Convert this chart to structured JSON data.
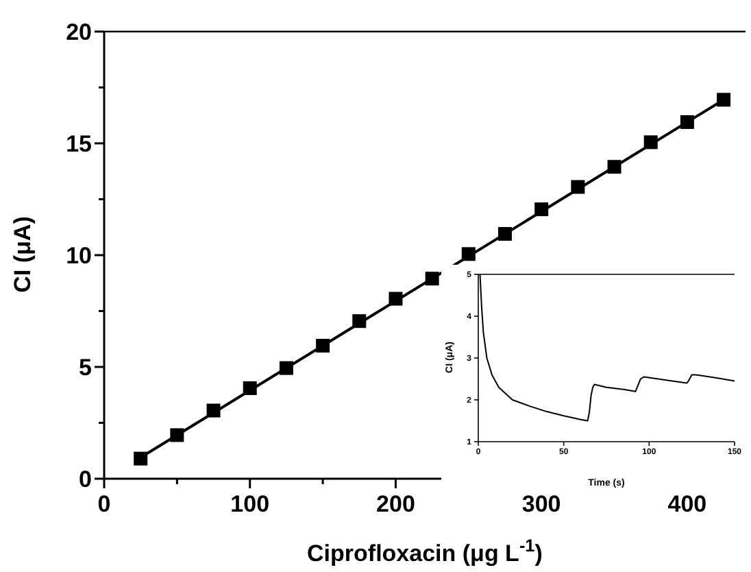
{
  "chart_data": [
    {
      "type": "scatter",
      "xlabel": "Ciprofloxacin (μg L$^{-1}$)",
      "ylabel": "CI (μA)",
      "xlim": [
        0,
        440
      ],
      "xticks": [
        0,
        {
          "value": 50,
          "label": null
        },
        100,
        {
          "value": 150,
          "label": null
        },
        200,
        {
          "value": 250,
          "label": null
        },
        300,
        {
          "value": 350,
          "label": null
        },
        400
      ],
      "ylim": [
        0,
        20
      ],
      "yticks": [
        0,
        {
          "value": 2.5,
          "label": null
        },
        5,
        {
          "value": 7.5,
          "label": null
        },
        10,
        {
          "value": 12.5,
          "label": null
        },
        15,
        {
          "value": 17.5,
          "label": null
        },
        20
      ],
      "series": [
        {
          "marker": "square",
          "color": "#000000",
          "x": [
            25,
            50,
            75,
            100,
            125,
            150,
            175,
            200,
            225,
            250,
            275,
            300,
            325,
            350,
            375,
            400,
            425
          ],
          "values": [
            0.9,
            1.95,
            3.05,
            4.05,
            4.95,
            5.95,
            7.05,
            8.05,
            8.95,
            10.05,
            10.95,
            12.05,
            13.05,
            13.95,
            15.05,
            15.95,
            16.95
          ]
        },
        {
          "type": "line",
          "marker": "none",
          "color": "#000000",
          "x": [
            25,
            425
          ],
          "values": [
            0.95,
            16.95
          ]
        }
      ]
    },
    {
      "type": "line",
      "xlabel": "Time (s)",
      "ylabel": "CI (μA)",
      "xlim": [
        0,
        150
      ],
      "xticks": [
        0,
        50,
        100,
        150
      ],
      "ylim": [
        1,
        5
      ],
      "yticks": [
        1,
        2,
        3,
        4,
        5
      ],
      "marker": "none",
      "series": [
        {
          "color": "#000000",
          "x": [
            1,
            2,
            3,
            5,
            8,
            12,
            20,
            30,
            40,
            50,
            60,
            64,
            65,
            66,
            67,
            68,
            75,
            85,
            92,
            93,
            95,
            97,
            110,
            122,
            123,
            125,
            127,
            140,
            150
          ],
          "values": [
            5,
            4.2,
            3.6,
            3.0,
            2.6,
            2.3,
            2.0,
            1.85,
            1.72,
            1.62,
            1.53,
            1.5,
            1.7,
            2.1,
            2.3,
            2.37,
            2.3,
            2.25,
            2.2,
            2.3,
            2.5,
            2.55,
            2.47,
            2.4,
            2.45,
            2.6,
            2.6,
            2.52,
            2.45
          ]
        }
      ]
    }
  ]
}
